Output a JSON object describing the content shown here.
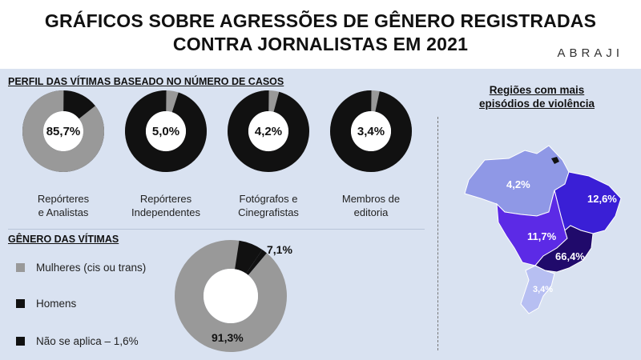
{
  "header": {
    "title_line1": "GRÁFICOS SOBRE AGRESSÕES DE GÊNERO REGISTRADAS",
    "title_line2": "CONTRA JORNALISTAS EM 2021",
    "logo": "ABRAJI"
  },
  "colors": {
    "background": "#d9e2f1",
    "gray": "#999999",
    "black": "#111111",
    "region_north": "#8f98e6",
    "region_northeast": "#3a1fd6",
    "region_centerwest": "#5c2ae6",
    "region_southeast": "#200a6b",
    "region_south": "#b7bff2"
  },
  "profile": {
    "section_title": "PERFIL DAS VÍTIMAS BASEADO NO NÚMERO DE CASOS",
    "items": [
      {
        "value_label": "85,7%",
        "label_line1": "Repórteres",
        "label_line2": "e Analistas",
        "value": 85.7
      },
      {
        "value_label": "5,0%",
        "label_line1": "Repórteres",
        "label_line2": "Independentes",
        "value": 5.0
      },
      {
        "value_label": "4,2%",
        "label_line1": "Fotógrafos e",
        "label_line2": "Cinegrafistas",
        "value": 4.2
      },
      {
        "value_label": "3,4%",
        "label_line1": "Membros de",
        "label_line2": "editoria",
        "value": 3.4
      }
    ]
  },
  "gender": {
    "section_title": "GÊNERO DAS VÍTIMAS",
    "legend": [
      {
        "label": "Mulheres (cis ou trans)",
        "color": "#999999"
      },
      {
        "label": "Homens",
        "color": "#111111"
      },
      {
        "label": "Não se aplica – 1,6%",
        "color": "#111111"
      }
    ],
    "value_women": "91,3%",
    "value_men": "7,1%"
  },
  "regions": {
    "title_line1": "Regiões com mais",
    "title_line2": "episódios de violência",
    "north": "4,2%",
    "northeast": "12,6%",
    "centerwest": "11,7%",
    "southeast": "66,4%",
    "south": "3,4%"
  },
  "chart_data": [
    {
      "type": "pie",
      "title": "PERFIL DAS VÍTIMAS BASEADO NO NÚMERO DE CASOS",
      "series": [
        {
          "name": "Repórteres e Analistas",
          "values": [
            85.7
          ]
        },
        {
          "name": "Repórteres Independentes",
          "values": [
            5.0
          ]
        },
        {
          "name": "Fotógrafos e Cinegrafistas",
          "values": [
            4.2
          ]
        },
        {
          "name": "Membros de editoria",
          "values": [
            3.4
          ]
        }
      ],
      "unit": "%"
    },
    {
      "type": "pie",
      "title": "GÊNERO DAS VÍTIMAS",
      "categories": [
        "Mulheres (cis ou trans)",
        "Homens",
        "Não se aplica"
      ],
      "values": [
        91.3,
        7.1,
        1.6
      ],
      "unit": "%"
    },
    {
      "type": "table",
      "title": "Regiões com mais episódios de violência",
      "values": [
        4.2,
        12.6,
        11.7,
        66.4,
        3.4
      ],
      "unit": "%"
    }
  ]
}
